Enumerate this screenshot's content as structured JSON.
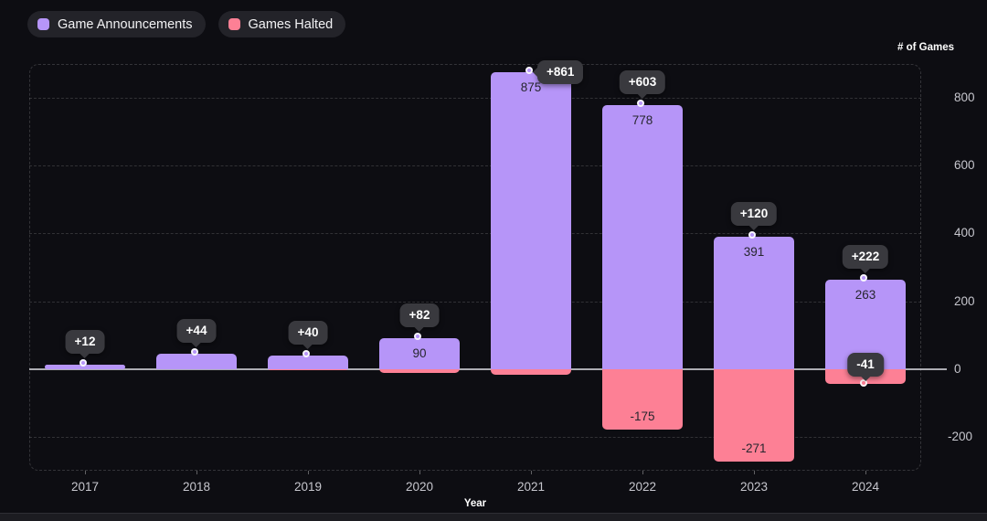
{
  "page": {
    "background": "#0d0d12",
    "accent_purple": "#b695f8",
    "accent_pink": "#fd8095"
  },
  "legend": {
    "items": [
      {
        "label": "Game Announcements",
        "color": "#b695f8"
      },
      {
        "label": "Games Halted",
        "color": "#fd8095"
      }
    ]
  },
  "axes": {
    "y_title": "# of Games",
    "x_title": "Year",
    "y_ticks": [
      "800",
      "600",
      "400",
      "200",
      "0",
      "-200"
    ],
    "y_tick_values": [
      800,
      600,
      400,
      200,
      0,
      -200
    ]
  },
  "chart_data": {
    "type": "bar",
    "subtype": "diverging-stacked",
    "title": "",
    "xlabel": "Year",
    "ylabel": "# of Games",
    "ylim": [
      -300,
      900
    ],
    "grid": "dashed-horizontal",
    "legend_position": "top-left",
    "categories": [
      "2017",
      "2018",
      "2019",
      "2020",
      "2021",
      "2022",
      "2023",
      "2024"
    ],
    "series": [
      {
        "name": "Game Announcements",
        "color": "#b695f8",
        "values": [
          12,
          44,
          41,
          90,
          875,
          778,
          391,
          263
        ],
        "bar_labels": [
          null,
          null,
          null,
          "90",
          "875",
          "778",
          "391",
          "263"
        ]
      },
      {
        "name": "Games Halted",
        "color": "#fd8095",
        "values": [
          0,
          0,
          -1,
          -8,
          -14,
          -175,
          -271,
          -41
        ],
        "bar_labels": [
          null,
          null,
          null,
          null,
          null,
          "-175",
          "-271",
          null
        ]
      }
    ],
    "net_callouts": [
      "+12",
      "+44",
      "+40",
      "+82",
      "+861",
      "+603",
      "+120",
      "+222"
    ],
    "extra_callouts": [
      {
        "category": "2024",
        "series": "Games Halted",
        "label": "-41"
      }
    ]
  }
}
